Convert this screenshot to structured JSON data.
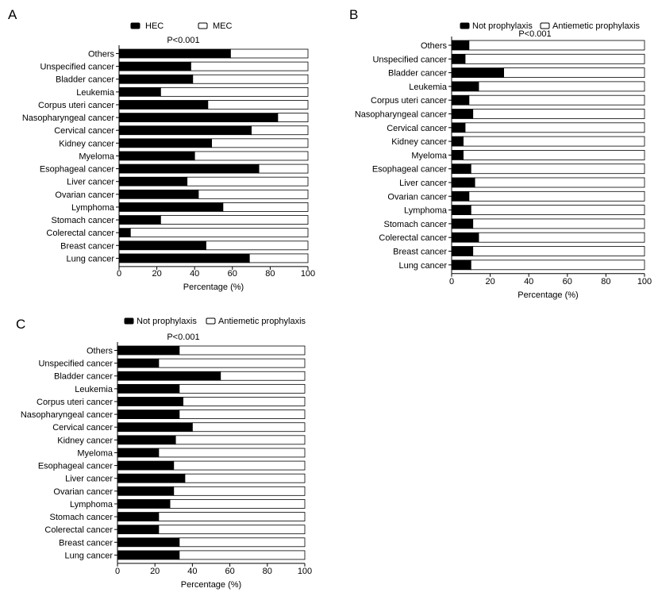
{
  "chart_data": [
    {
      "panel": "A",
      "type": "bar",
      "orientation": "horizontal",
      "stacked": true,
      "normalized": true,
      "annotation": "P<0.001",
      "xlabel": "Percentage (%)",
      "xlim": [
        0,
        100
      ],
      "xticks": [
        0,
        20,
        40,
        60,
        80,
        100
      ],
      "grid": false,
      "legend_position": "top",
      "categories": [
        "Others",
        "Unspecified cancer",
        "Bladder cancer",
        "Leukemia",
        "Corpus uteri cancer",
        "Nasopharyngeal cancer",
        "Cervical cancer",
        "Kidney cancer",
        "Myeloma",
        "Esophageal cancer",
        "Liver cancer",
        "Ovarian cancer",
        "Lymphoma",
        "Stomach cancer",
        "Colerectal cancer",
        "Breast cancer",
        "Lung cancer"
      ],
      "series": [
        {
          "name": "HEC",
          "color": "#000000",
          "values": [
            59,
            38,
            39,
            22,
            47,
            84,
            70,
            49,
            40,
            74,
            36,
            42,
            55,
            22,
            6,
            46,
            69
          ]
        },
        {
          "name": "MEC",
          "color": "#ffffff",
          "values": [
            41,
            62,
            61,
            78,
            53,
            16,
            30,
            51,
            60,
            26,
            64,
            58,
            45,
            78,
            94,
            54,
            31
          ]
        }
      ]
    },
    {
      "panel": "B",
      "type": "bar",
      "orientation": "horizontal",
      "stacked": true,
      "normalized": true,
      "annotation": "P<0.001",
      "xlabel": "Percentage (%)",
      "xlim": [
        0,
        100
      ],
      "xticks": [
        0,
        20,
        40,
        60,
        80,
        100
      ],
      "grid": false,
      "legend_position": "top",
      "categories": [
        "Others",
        "Unspecified cancer",
        "Bladder cancer",
        "Leukemia",
        "Corpus uteri cancer",
        "Nasopharyngeal cancer",
        "Cervical cancer",
        "Kidney cancer",
        "Myeloma",
        "Esophageal cancer",
        "Liver cancer",
        "Ovarian cancer",
        "Lymphoma",
        "Stomach cancer",
        "Colerectal cancer",
        "Breast cancer",
        "Lung cancer"
      ],
      "series": [
        {
          "name": "Not prophylaxis",
          "color": "#000000",
          "values": [
            9,
            7,
            27,
            14,
            9,
            11,
            7,
            6,
            6,
            10,
            12,
            9,
            10,
            11,
            14,
            11,
            10
          ]
        },
        {
          "name": "Antiemetic prophylaxis",
          "color": "#ffffff",
          "values": [
            91,
            93,
            73,
            86,
            91,
            89,
            93,
            94,
            94,
            90,
            88,
            91,
            90,
            89,
            86,
            89,
            90
          ]
        }
      ]
    },
    {
      "panel": "C",
      "type": "bar",
      "orientation": "horizontal",
      "stacked": true,
      "normalized": true,
      "annotation": "P<0.001",
      "xlabel": "Percentage (%)",
      "xlim": [
        0,
        100
      ],
      "xticks": [
        0,
        20,
        40,
        60,
        80,
        100
      ],
      "grid": false,
      "legend_position": "top",
      "categories": [
        "Others",
        "Unspecified cancer",
        "Bladder cancer",
        "Leukemia",
        "Corpus uteri cancer",
        "Nasopharyngeal cancer",
        "Cervical cancer",
        "Kidney cancer",
        "Myeloma",
        "Esophageal cancer",
        "Liver cancer",
        "Ovarian cancer",
        "Lymphoma",
        "Stomach cancer",
        "Colerectal cancer",
        "Breast cancer",
        "Lung cancer"
      ],
      "series": [
        {
          "name": "Not prophylaxis",
          "color": "#000000",
          "values": [
            33,
            22,
            55,
            33,
            35,
            33,
            40,
            31,
            22,
            30,
            36,
            30,
            28,
            22,
            22,
            33,
            33
          ]
        },
        {
          "name": "Antiemetic prophylaxis",
          "color": "#ffffff",
          "values": [
            67,
            78,
            45,
            67,
            65,
            67,
            60,
            69,
            78,
            70,
            64,
            70,
            72,
            78,
            78,
            67,
            67
          ]
        }
      ]
    }
  ]
}
